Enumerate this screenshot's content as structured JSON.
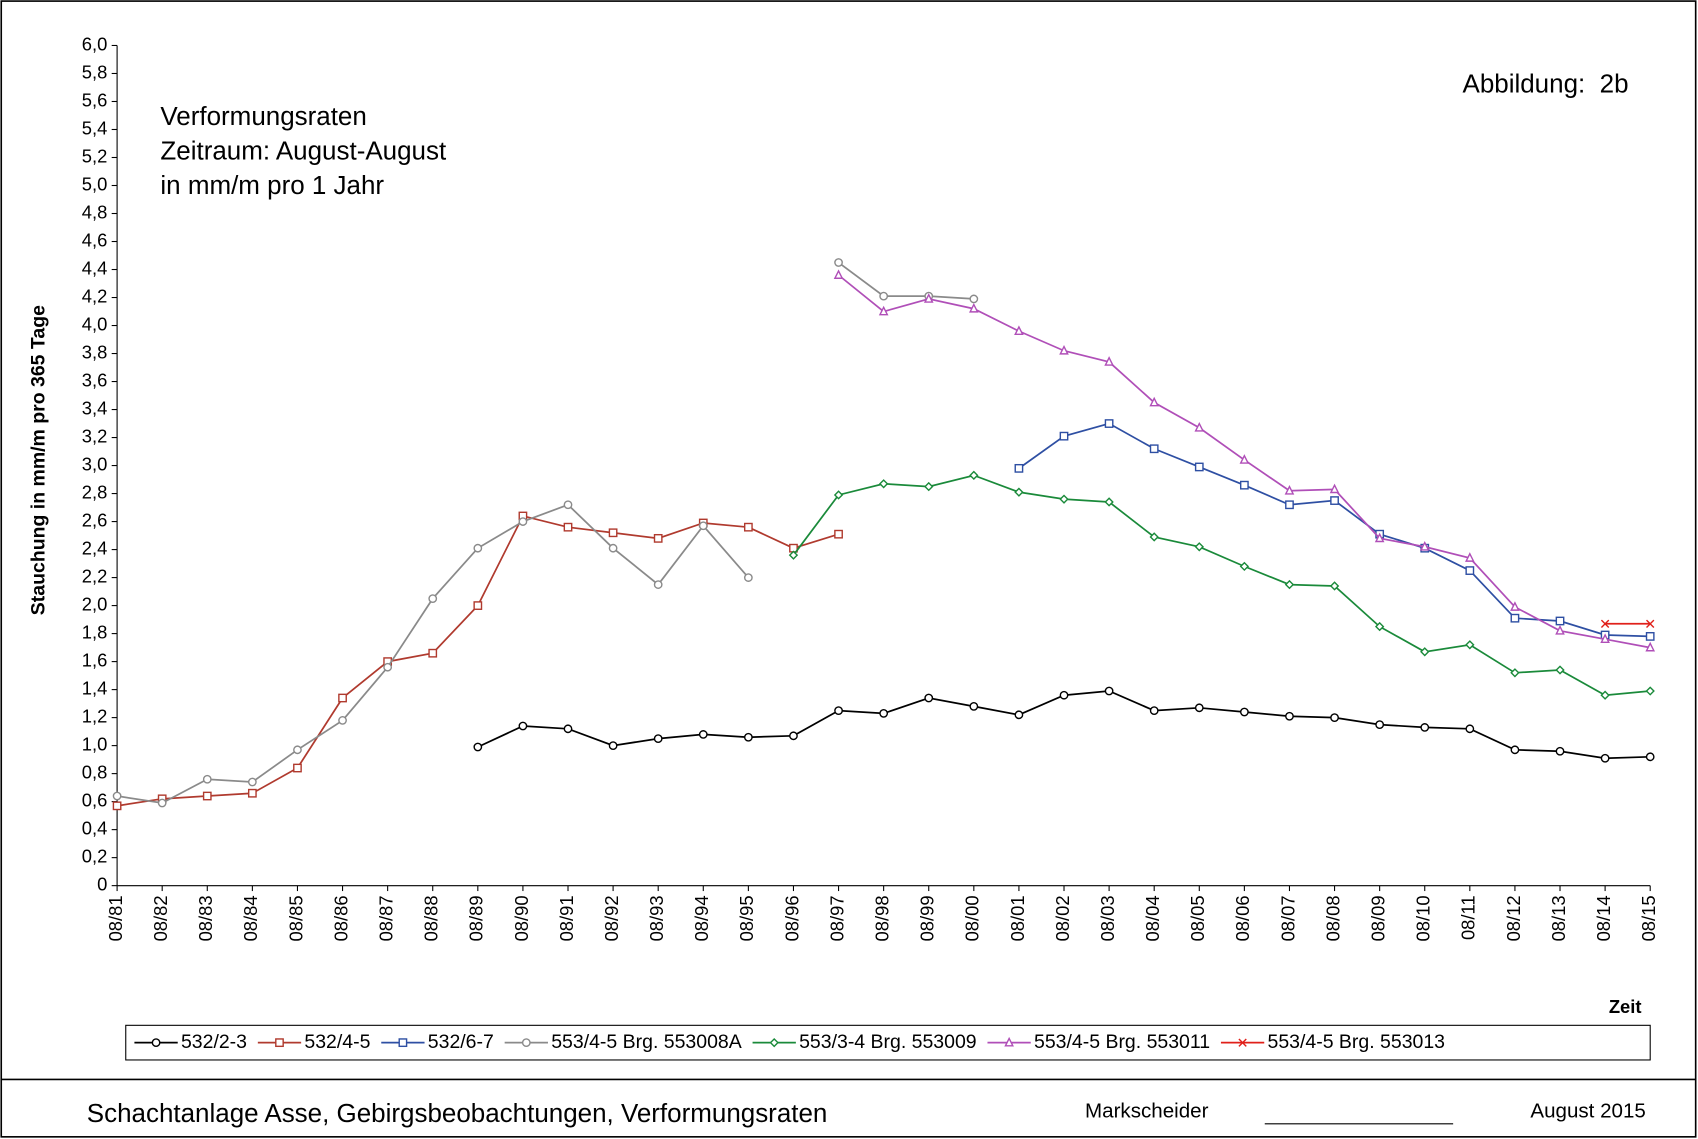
{
  "chart_data": {
    "type": "line",
    "title_lines": [
      "Verformungsraten",
      "Zeitraum: August-August",
      "in mm/m pro 1 Jahr"
    ],
    "figure_label": "Abbildung:  2b",
    "y_label": "Stauchung in mm/m pro 365 Tage",
    "x_label": "Zeit",
    "footer": {
      "left": "Schachtanlage Asse, Gebirgsbeobachtungen, Verformungsraten",
      "middle": "Markscheider",
      "right": "August 2015"
    },
    "categories": [
      "08/81",
      "08/82",
      "08/83",
      "08/84",
      "08/85",
      "08/86",
      "08/87",
      "08/88",
      "08/89",
      "08/90",
      "08/91",
      "08/92",
      "08/93",
      "08/94",
      "08/95",
      "08/96",
      "08/97",
      "08/98",
      "08/99",
      "08/00",
      "08/01",
      "08/02",
      "08/03",
      "08/04",
      "08/05",
      "08/06",
      "08/07",
      "08/08",
      "08/09",
      "08/10",
      "08/11",
      "08/12",
      "08/13",
      "08/14",
      "08/15"
    ],
    "ylim": [
      0,
      6
    ],
    "yticks": [
      0,
      {
        "value": 0.2,
        "label": "0,2"
      },
      {
        "value": 0.4,
        "label": "0,4"
      },
      {
        "value": 0.6,
        "label": "0,6"
      },
      {
        "value": 0.8,
        "label": "0,8"
      },
      {
        "value": 1.0,
        "label": "1,0"
      },
      {
        "value": 1.2,
        "label": "1,2"
      },
      {
        "value": 1.4,
        "label": "1,4"
      },
      {
        "value": 1.6,
        "label": "1,6"
      },
      {
        "value": 1.8,
        "label": "1,8"
      },
      {
        "value": 2.0,
        "label": "2,0"
      },
      {
        "value": 2.2,
        "label": "2,2"
      },
      {
        "value": 2.4,
        "label": "2,4"
      },
      {
        "value": 2.6,
        "label": "2,6"
      },
      {
        "value": 2.8,
        "label": "2,8"
      },
      {
        "value": 3.0,
        "label": "3,0"
      },
      {
        "value": 3.2,
        "label": "3,2"
      },
      {
        "value": 3.4,
        "label": "3,4"
      },
      {
        "value": 3.6,
        "label": "3,6"
      },
      {
        "value": 3.8,
        "label": "3,8"
      },
      {
        "value": 4.0,
        "label": "4,0"
      },
      {
        "value": 4.2,
        "label": "4,2"
      },
      {
        "value": 4.4,
        "label": "4,4"
      },
      {
        "value": 4.6,
        "label": "4,6"
      },
      {
        "value": 4.8,
        "label": "4,8"
      },
      {
        "value": 5.0,
        "label": "5,0"
      },
      {
        "value": 5.2,
        "label": "5,2"
      },
      {
        "value": 5.4,
        "label": "5,4"
      },
      {
        "value": 5.6,
        "label": "5,6"
      },
      {
        "value": 5.8,
        "label": "5,8"
      },
      {
        "value": 6.0,
        "label": "6,0"
      }
    ],
    "grid": false,
    "legend": "bottom",
    "series": [
      {
        "name": "532/2-3",
        "color": "#000000",
        "marker": "circle",
        "values": [
          null,
          null,
          null,
          null,
          null,
          null,
          null,
          null,
          0.99,
          1.14,
          1.12,
          1.0,
          1.05,
          1.08,
          1.06,
          1.07,
          1.25,
          1.23,
          1.34,
          1.28,
          1.22,
          1.36,
          1.39,
          1.25,
          1.27,
          1.24,
          1.21,
          1.2,
          1.15,
          1.13,
          1.12,
          0.97,
          0.96,
          0.91,
          0.92
        ]
      },
      {
        "name": "532/4-5",
        "color": "#b03a2e",
        "marker": "square",
        "values": [
          0.57,
          0.62,
          0.64,
          0.66,
          0.84,
          1.34,
          1.6,
          1.66,
          2.0,
          2.64,
          2.56,
          2.52,
          2.48,
          2.59,
          2.56,
          2.41,
          2.51,
          null,
          null,
          null,
          null,
          null,
          null,
          null,
          null,
          null,
          null,
          null,
          null,
          null,
          null,
          null,
          null,
          null,
          null
        ]
      },
      {
        "name": "532/6-7",
        "color": "#2e4fa3",
        "marker": "square",
        "values": [
          null,
          null,
          null,
          null,
          null,
          null,
          null,
          null,
          null,
          null,
          null,
          null,
          null,
          null,
          null,
          null,
          null,
          null,
          null,
          null,
          2.98,
          3.21,
          3.3,
          3.12,
          2.99,
          2.86,
          2.72,
          2.75,
          2.51,
          2.41,
          2.25,
          1.91,
          1.89,
          1.79,
          1.78
        ]
      },
      {
        "name": "553/4-5 Brg. 553008A",
        "color": "#8a8a8a",
        "marker": "circle",
        "values": [
          0.64,
          0.59,
          0.76,
          0.74,
          0.97,
          1.18,
          1.56,
          2.05,
          2.41,
          2.6,
          2.72,
          2.41,
          2.15,
          2.57,
          2.2,
          null,
          4.45,
          4.21,
          4.21,
          4.19,
          null,
          null,
          null,
          null,
          null,
          null,
          null,
          null,
          null,
          null,
          null,
          null,
          null,
          null,
          null
        ]
      },
      {
        "name": "553/3-4 Brg. 553009",
        "color": "#1a8a3a",
        "marker": "diamond",
        "values": [
          null,
          null,
          null,
          null,
          null,
          null,
          null,
          null,
          null,
          null,
          null,
          null,
          null,
          null,
          null,
          2.36,
          2.79,
          2.87,
          2.85,
          2.93,
          2.81,
          2.76,
          2.74,
          2.49,
          2.42,
          2.28,
          2.15,
          2.14,
          1.85,
          1.67,
          1.72,
          1.52,
          1.54,
          1.36,
          1.39
        ]
      },
      {
        "name": "553/4-5 Brg. 553011",
        "color": "#b04fb8",
        "marker": "triangle",
        "values": [
          null,
          null,
          null,
          null,
          null,
          null,
          null,
          null,
          null,
          null,
          null,
          null,
          null,
          null,
          null,
          null,
          4.36,
          4.1,
          4.19,
          4.12,
          3.96,
          3.82,
          3.74,
          3.45,
          3.27,
          3.04,
          2.82,
          2.83,
          2.48,
          2.42,
          2.34,
          1.99,
          1.82,
          1.76,
          1.7
        ]
      },
      {
        "name": "553/4-5 Brg. 553013",
        "color": "#e0201a",
        "marker": "x",
        "values": [
          null,
          null,
          null,
          null,
          null,
          null,
          null,
          null,
          null,
          null,
          null,
          null,
          null,
          null,
          null,
          null,
          null,
          null,
          null,
          null,
          null,
          null,
          null,
          null,
          null,
          null,
          null,
          null,
          null,
          null,
          null,
          null,
          null,
          1.87,
          1.87
        ]
      }
    ]
  }
}
